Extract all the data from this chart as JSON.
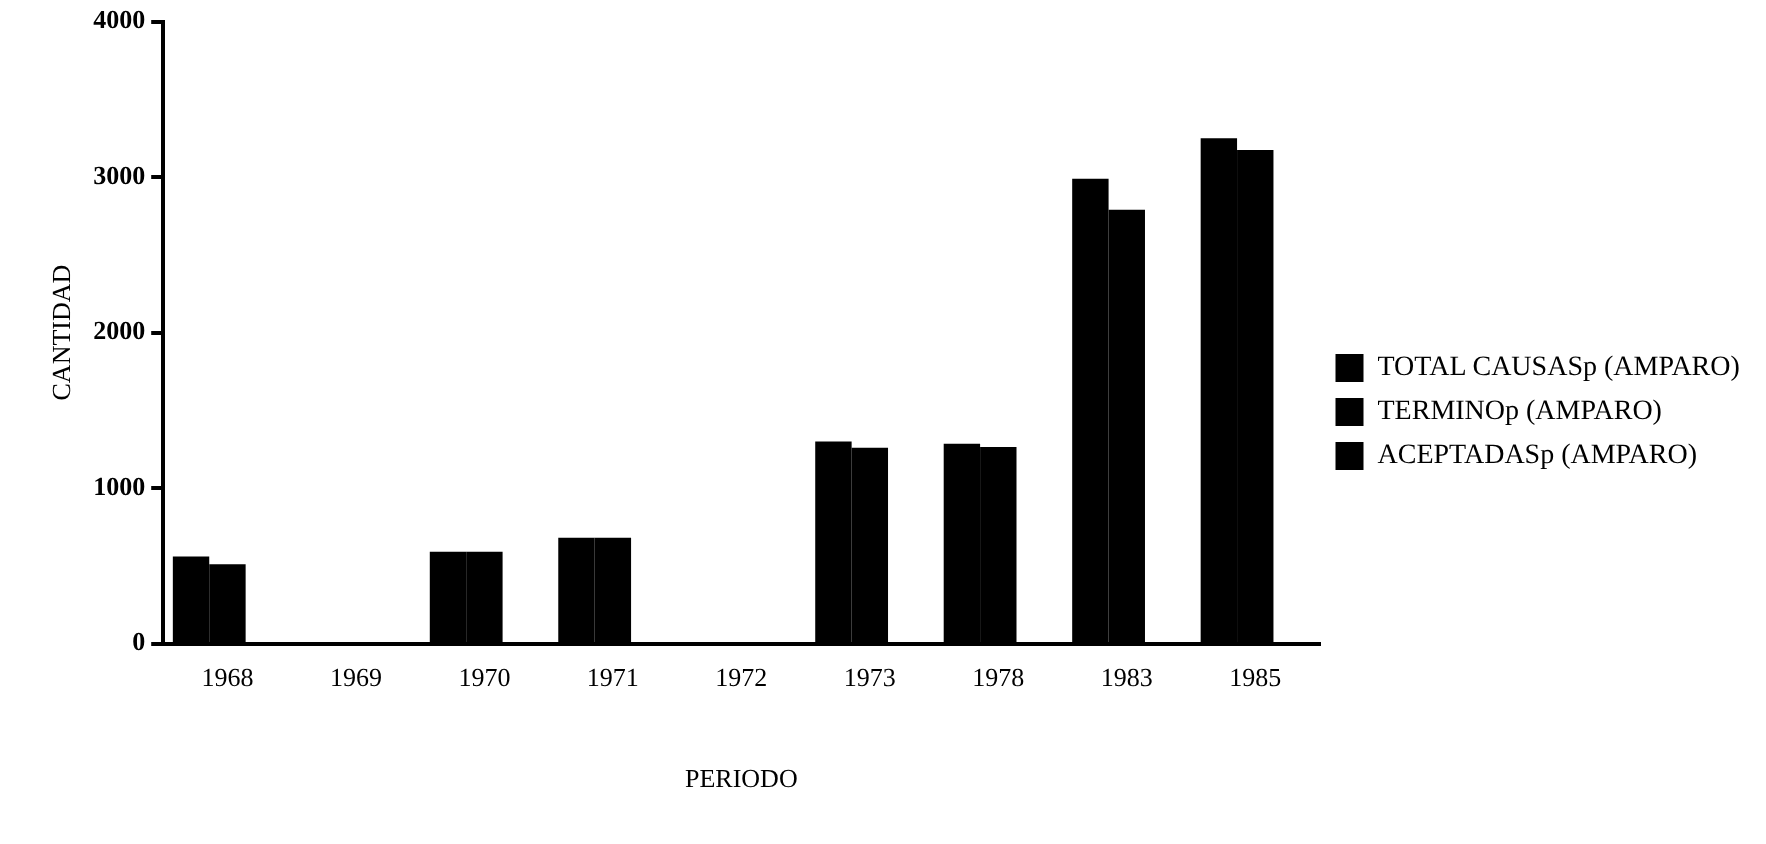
{
  "chart_data": {
    "type": "bar",
    "xlabel": "PERIODO",
    "ylabel": "CANTIDAD",
    "categories": [
      "1968",
      "1969",
      "1970",
      "1971",
      "1972",
      "1973",
      "1978",
      "1983",
      "1985"
    ],
    "series": [
      {
        "name": "TOTAL CAUSASp (AMPARO)",
        "color": "#000000",
        "values": [
          560,
          10,
          590,
          680,
          10,
          1300,
          1285,
          2990,
          3250
        ]
      },
      {
        "name": "TERMINOp (AMPARO)",
        "color": "#000000",
        "values": [
          510,
          5,
          590,
          680,
          10,
          1260,
          1265,
          2790,
          3175
        ]
      },
      {
        "name": "ACEPTADASp (AMPARO)",
        "color": "#000000",
        "values": [
          null,
          null,
          null,
          null,
          null,
          null,
          null,
          null,
          null
        ]
      }
    ],
    "ylim": [
      0,
      4000
    ],
    "yticks": [
      0,
      1000,
      2000,
      3000,
      4000
    ],
    "grid": false,
    "legend": "right"
  }
}
